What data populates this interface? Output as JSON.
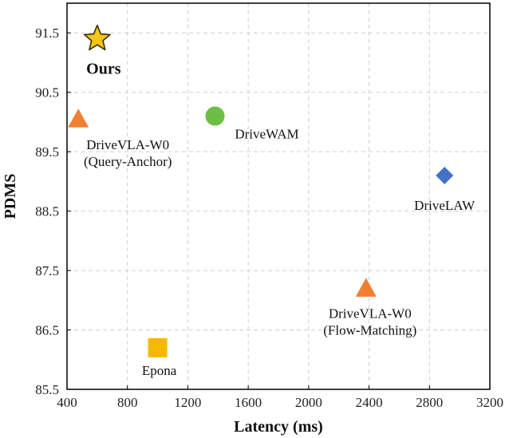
{
  "chart_data": {
    "type": "scatter",
    "xlabel": "Latency (ms)",
    "ylabel": "PDMS",
    "xlim": [
      400,
      3200
    ],
    "ylim": [
      85.5,
      92.0
    ],
    "x_ticks": [
      400,
      800,
      1200,
      1600,
      2000,
      2400,
      2800,
      3200
    ],
    "y_ticks": [
      85.5,
      86.5,
      87.5,
      88.5,
      89.5,
      90.5,
      91.5
    ],
    "y_tick_labels": [
      "85.5",
      "86.5",
      "87.5",
      "88.5",
      "89.5",
      "90.5",
      "91.5"
    ],
    "grid": true,
    "points": [
      {
        "key": "ours",
        "label_lines": [
          "Ours"
        ],
        "x": 600,
        "y": 91.4,
        "marker": "star",
        "color": "#F5C518",
        "bold": true
      },
      {
        "key": "drivevla-w0-query-anchor",
        "label_lines": [
          "DriveVLA-W0",
          "(Query-Anchor)"
        ],
        "x": 475,
        "y": 90.05,
        "marker": "triangle",
        "color": "#F08030",
        "bold": false
      },
      {
        "key": "drivewam",
        "label_lines": [
          "DriveWAM"
        ],
        "x": 1380,
        "y": 90.1,
        "marker": "circle",
        "color": "#6DBE45",
        "bold": false
      },
      {
        "key": "drivelaw",
        "label_lines": [
          "DriveLAW"
        ],
        "x": 2900,
        "y": 89.1,
        "marker": "diamond",
        "color": "#4472C4",
        "bold": false
      },
      {
        "key": "drivevla-w0-flow-matching",
        "label_lines": [
          "DriveVLA-W0",
          "(Flow-Matching)"
        ],
        "x": 2380,
        "y": 87.2,
        "marker": "triangle",
        "color": "#F08030",
        "bold": false
      },
      {
        "key": "epona",
        "label_lines": [
          "Epona"
        ],
        "x": 1000,
        "y": 86.2,
        "marker": "square",
        "color": "#F5B800",
        "bold": false
      }
    ]
  }
}
